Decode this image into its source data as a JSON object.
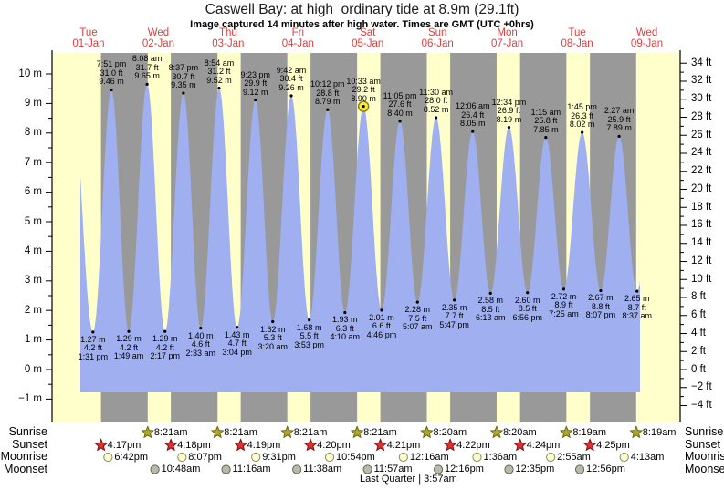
{
  "chart_data": {
    "type": "area",
    "title": "Caswell Bay: at high  ordinary tide at 8.9m (29.1ft)",
    "subtitle": "Image captured 14 minutes after high water. Times are GMT (UTC +0hrs)",
    "days": [
      {
        "label": "Tue",
        "date": "01-Jan"
      },
      {
        "label": "Wed",
        "date": "02-Jan"
      },
      {
        "label": "Thu",
        "date": "03-Jan"
      },
      {
        "label": "Fri",
        "date": "04-Jan"
      },
      {
        "label": "Sat",
        "date": "05-Jan"
      },
      {
        "label": "Sun",
        "date": "06-Jan"
      },
      {
        "label": "Mon",
        "date": "07-Jan"
      },
      {
        "label": "Tue",
        "date": "08-Jan"
      },
      {
        "label": "Wed",
        "date": "09-Jan"
      }
    ],
    "y_axis_left": {
      "unit": "m",
      "ticks": [
        10,
        9,
        8,
        7,
        6,
        5,
        4,
        3,
        2,
        1,
        0,
        -1
      ]
    },
    "y_axis_right": {
      "unit": "ft",
      "ticks": [
        34,
        32,
        30,
        28,
        26,
        24,
        22,
        20,
        18,
        16,
        14,
        12,
        10,
        8,
        6,
        4,
        2,
        0,
        -2,
        -4
      ]
    },
    "tides": [
      {
        "kind": "low",
        "day": 0,
        "time": "1:31 pm",
        "m": "1.27",
        "ft": "4.2"
      },
      {
        "kind": "high",
        "day": 0,
        "time": "7:51 pm",
        "m": "9.46",
        "ft": "31.0"
      },
      {
        "kind": "low",
        "day": 1,
        "time": "1:49 am",
        "m": "1.29",
        "ft": "4.2"
      },
      {
        "kind": "high",
        "day": 1,
        "time": "8:08 am",
        "m": "9.65",
        "ft": "31.7"
      },
      {
        "kind": "low",
        "day": 1,
        "time": "2:17 pm",
        "m": "1.29",
        "ft": "4.2"
      },
      {
        "kind": "high",
        "day": 1,
        "time": "8:37 pm",
        "m": "9.35",
        "ft": "30.7"
      },
      {
        "kind": "low",
        "day": 2,
        "time": "2:33 am",
        "m": "1.40",
        "ft": "4.6"
      },
      {
        "kind": "high",
        "day": 2,
        "time": "8:54 am",
        "m": "9.52",
        "ft": "31.2"
      },
      {
        "kind": "low",
        "day": 2,
        "time": "3:04 pm",
        "m": "1.43",
        "ft": "4.7"
      },
      {
        "kind": "high",
        "day": 2,
        "time": "9:23 pm",
        "m": "9.12",
        "ft": "29.9"
      },
      {
        "kind": "low",
        "day": 3,
        "time": "3:20 am",
        "m": "1.62",
        "ft": "5.3"
      },
      {
        "kind": "high",
        "day": 3,
        "time": "9:42 am",
        "m": "9.26",
        "ft": "30.4"
      },
      {
        "kind": "low",
        "day": 3,
        "time": "3:53 pm",
        "m": "1.68",
        "ft": "5.5"
      },
      {
        "kind": "high",
        "day": 3,
        "time": "10:12 pm",
        "m": "8.79",
        "ft": "28.8"
      },
      {
        "kind": "low",
        "day": 4,
        "time": "4:10 am",
        "m": "1.93",
        "ft": "6.3"
      },
      {
        "kind": "high",
        "day": 4,
        "time": "10:33 am",
        "m": "8.90",
        "ft": "29.2",
        "current": true
      },
      {
        "kind": "low",
        "day": 4,
        "time": "4:46 pm",
        "m": "2.01",
        "ft": "6.6"
      },
      {
        "kind": "high",
        "day": 4,
        "time": "11:05 pm",
        "m": "8.40",
        "ft": "27.6"
      },
      {
        "kind": "low",
        "day": 5,
        "time": "5:07 am",
        "m": "2.28",
        "ft": "7.5"
      },
      {
        "kind": "high",
        "day": 5,
        "time": "11:30 am",
        "m": "8.52",
        "ft": "28.0"
      },
      {
        "kind": "low",
        "day": 5,
        "time": "5:47 pm",
        "m": "2.35",
        "ft": "7.7"
      },
      {
        "kind": "high",
        "day": 6,
        "time": "12:06 am",
        "m": "8.05",
        "ft": "26.4"
      },
      {
        "kind": "low",
        "day": 6,
        "time": "6:13 am",
        "m": "2.58",
        "ft": "8.5"
      },
      {
        "kind": "high",
        "day": 6,
        "time": "12:34 pm",
        "m": "8.19",
        "ft": "26.9"
      },
      {
        "kind": "low",
        "day": 6,
        "time": "6:56 pm",
        "m": "2.60",
        "ft": "8.5"
      },
      {
        "kind": "high",
        "day": 7,
        "time": "1:15 am",
        "m": "7.85",
        "ft": "25.8"
      },
      {
        "kind": "low",
        "day": 7,
        "time": "7:25 am",
        "m": "2.72",
        "ft": "8.9"
      },
      {
        "kind": "high",
        "day": 7,
        "time": "1:45 pm",
        "m": "8.02",
        "ft": "26.3"
      },
      {
        "kind": "low",
        "day": 7,
        "time": "8:07 pm",
        "m": "2.67",
        "ft": "8.8"
      },
      {
        "kind": "high",
        "day": 8,
        "time": "2:27 am",
        "m": "7.89",
        "ft": "25.9"
      },
      {
        "kind": "low",
        "day": 8,
        "time": "8:37 am",
        "m": "2.65",
        "ft": "8.7"
      }
    ]
  },
  "sun_moon": {
    "rows": [
      {
        "name": "Sunrise",
        "events": [
          {
            "day": 1,
            "time": "8:21am"
          },
          {
            "day": 2,
            "time": "8:21am"
          },
          {
            "day": 3,
            "time": "8:21am"
          },
          {
            "day": 4,
            "time": "8:21am"
          },
          {
            "day": 5,
            "time": "8:20am"
          },
          {
            "day": 6,
            "time": "8:20am"
          },
          {
            "day": 7,
            "time": "8:19am"
          },
          {
            "day": 8,
            "time": "8:19am"
          }
        ]
      },
      {
        "name": "Sunset",
        "events": [
          {
            "day": 0,
            "time": "4:17pm"
          },
          {
            "day": 1,
            "time": "4:18pm"
          },
          {
            "day": 2,
            "time": "4:19pm"
          },
          {
            "day": 3,
            "time": "4:20pm"
          },
          {
            "day": 4,
            "time": "4:21pm"
          },
          {
            "day": 5,
            "time": "4:22pm"
          },
          {
            "day": 6,
            "time": "4:24pm"
          },
          {
            "day": 7,
            "time": "4:25pm"
          }
        ]
      },
      {
        "name": "Moonrise",
        "events": [
          {
            "day": 0,
            "time": "6:42pm"
          },
          {
            "day": 1,
            "time": "8:07pm"
          },
          {
            "day": 2,
            "time": "9:31pm"
          },
          {
            "day": 3,
            "time": "10:54pm"
          },
          {
            "day": 5,
            "time": "12:16am"
          },
          {
            "day": 6,
            "time": "1:36am"
          },
          {
            "day": 7,
            "time": "2:55am"
          },
          {
            "day": 8,
            "time": "4:13am"
          }
        ]
      },
      {
        "name": "Moonset",
        "events": [
          {
            "day": 1,
            "time": "10:48am"
          },
          {
            "day": 2,
            "time": "11:16am"
          },
          {
            "day": 3,
            "time": "11:38am"
          },
          {
            "day": 4,
            "time": "11:57am"
          },
          {
            "day": 5,
            "time": "12:16pm"
          },
          {
            "day": 6,
            "time": "12:35pm"
          },
          {
            "day": 7,
            "time": "12:56pm"
          }
        ]
      }
    ],
    "moon_phase": "Last Quarter | 3:57am"
  },
  "colors": {
    "day_band": "#ffffcc",
    "night_band": "#999999",
    "tide_fill": "#9fafef",
    "date_red": "#e43b3b",
    "sunrise_star": "#b0a535",
    "sunset_star": "#e03030",
    "moonrise_fill": "#ffffcc",
    "moonset_fill": "#b9b9ac",
    "current_marker": "#ffe93d",
    "axis_black": "#000000"
  }
}
